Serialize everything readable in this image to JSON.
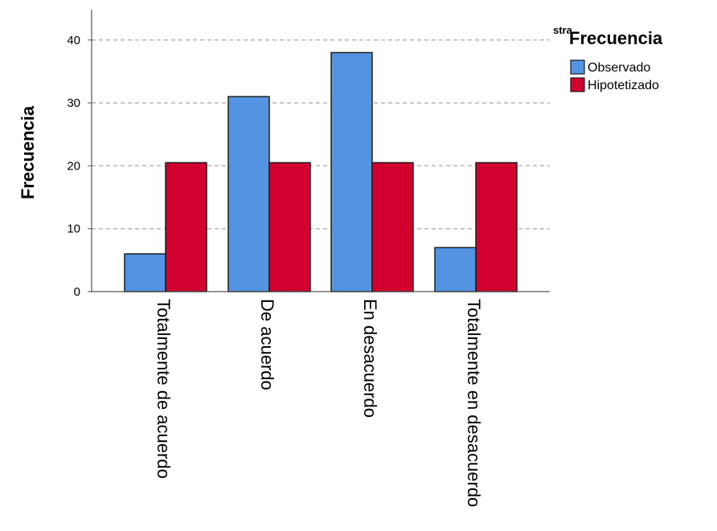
{
  "chart_data": {
    "type": "bar",
    "categories": [
      "Totalmente de acuerdo",
      "De acuerdo",
      "En desacuerdo",
      "Totalmente en desacuerdo"
    ],
    "series": [
      {
        "name": "Observado",
        "values": [
          6,
          31,
          38,
          7
        ],
        "color": "#5294e2"
      },
      {
        "name": "Hipotetizado",
        "values": [
          20.5,
          20.5,
          20.5,
          20.5
        ],
        "color": "#d1002f"
      }
    ],
    "ylabel": "Frecuencia",
    "xlabel": "",
    "ylim": [
      0,
      44
    ],
    "yticks": [
      0,
      10,
      20,
      30,
      40
    ],
    "grid": true,
    "legend": {
      "title": "Frecuencia",
      "overlap_text": "stra",
      "position": "top-right"
    }
  }
}
